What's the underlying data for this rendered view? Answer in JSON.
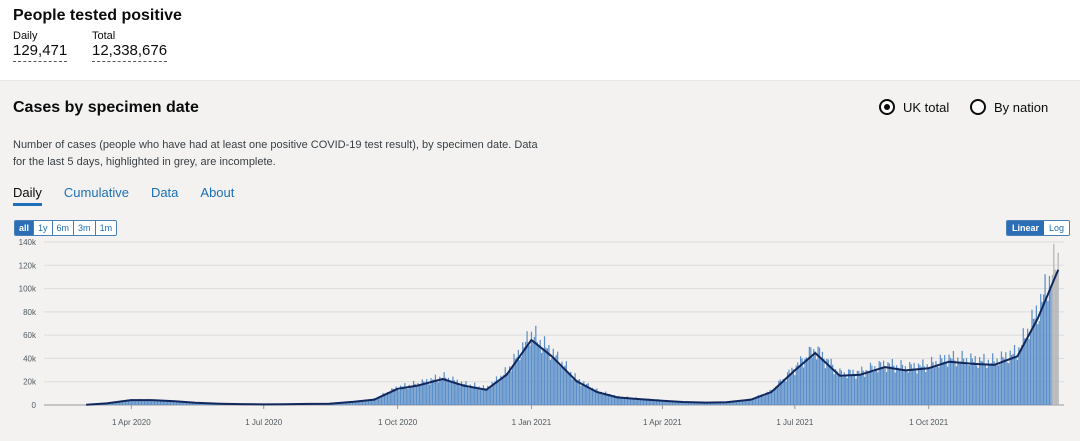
{
  "header": {
    "title": "People tested positive",
    "daily_label": "Daily",
    "daily_value": "129,471",
    "total_label": "Total",
    "total_value": "12,338,676"
  },
  "card": {
    "title": "Cases by specimen date",
    "area_options": [
      {
        "label": "UK total",
        "selected": true
      },
      {
        "label": "By nation",
        "selected": false
      }
    ],
    "description": "Number of cases (people who have had at least one positive COVID-19 test result), by specimen date. Data for the last 5 days, highlighted in grey, are incomplete.",
    "tabs": [
      "Daily",
      "Cumulative",
      "Data",
      "About"
    ],
    "active_tab": "Daily",
    "range_buttons": [
      "all",
      "1y",
      "6m",
      "3m",
      "1m"
    ],
    "active_range": "all",
    "scale_buttons": [
      "Linear",
      "Log"
    ],
    "active_scale": "Linear"
  },
  "chart_data": {
    "type": "bar",
    "title": "",
    "bar_color": "#5b8fc9",
    "incomplete_color": "#b1b4b6",
    "line_color": "#12275b",
    "ylim": [
      0,
      140000
    ],
    "y_ticks": [
      "0",
      "20k",
      "40k",
      "60k",
      "80k",
      "100k",
      "120k",
      "140k"
    ],
    "y_tick_values": [
      0,
      20000,
      40000,
      60000,
      80000,
      100000,
      120000,
      140000
    ],
    "x_ticks": [
      "1 Apr 2020",
      "1 Jul 2020",
      "1 Oct 2020",
      "1 Jan 2021",
      "1 Apr 2021",
      "1 Jul 2021",
      "1 Oct 2021"
    ],
    "x_tick_dates": [
      "2020-04-01",
      "2020-07-01",
      "2020-10-01",
      "2021-01-01",
      "2021-04-01",
      "2021-07-01",
      "2021-10-01"
    ],
    "grid": true,
    "series": [
      {
        "dates": [
          "2020-03-01",
          "2020-03-15",
          "2020-04-01",
          "2020-04-15",
          "2020-05-01",
          "2020-05-15",
          "2020-06-01",
          "2020-06-15",
          "2020-07-01",
          "2020-07-15",
          "2020-08-01",
          "2020-08-15",
          "2020-09-01",
          "2020-09-15",
          "2020-10-01",
          "2020-10-15",
          "2020-11-01",
          "2020-11-15",
          "2020-12-01",
          "2020-12-15",
          "2021-01-01",
          "2021-01-15",
          "2021-02-01",
          "2021-02-15",
          "2021-03-01",
          "2021-03-15",
          "2021-04-01",
          "2021-04-15",
          "2021-05-01",
          "2021-05-15",
          "2021-06-01",
          "2021-06-15",
          "2021-07-01",
          "2021-07-15",
          "2021-08-01",
          "2021-08-15",
          "2021-09-01",
          "2021-09-15",
          "2021-10-01",
          "2021-10-15",
          "2021-11-01",
          "2021-11-15",
          "2021-12-01",
          "2021-12-15",
          "2021-12-29"
        ],
        "values": [
          300,
          1500,
          4500,
          4500,
          3500,
          2000,
          1200,
          800,
          600,
          700,
          1000,
          1200,
          3000,
          5000,
          15000,
          18000,
          24000,
          18000,
          14000,
          28000,
          60000,
          45000,
          22000,
          12000,
          7000,
          5500,
          4000,
          2800,
          2200,
          2500,
          5000,
          12000,
          32000,
          48000,
          27000,
          28000,
          35000,
          32000,
          34000,
          40000,
          38000,
          37000,
          45000,
          80000,
          125000
        ]
      }
    ]
  }
}
